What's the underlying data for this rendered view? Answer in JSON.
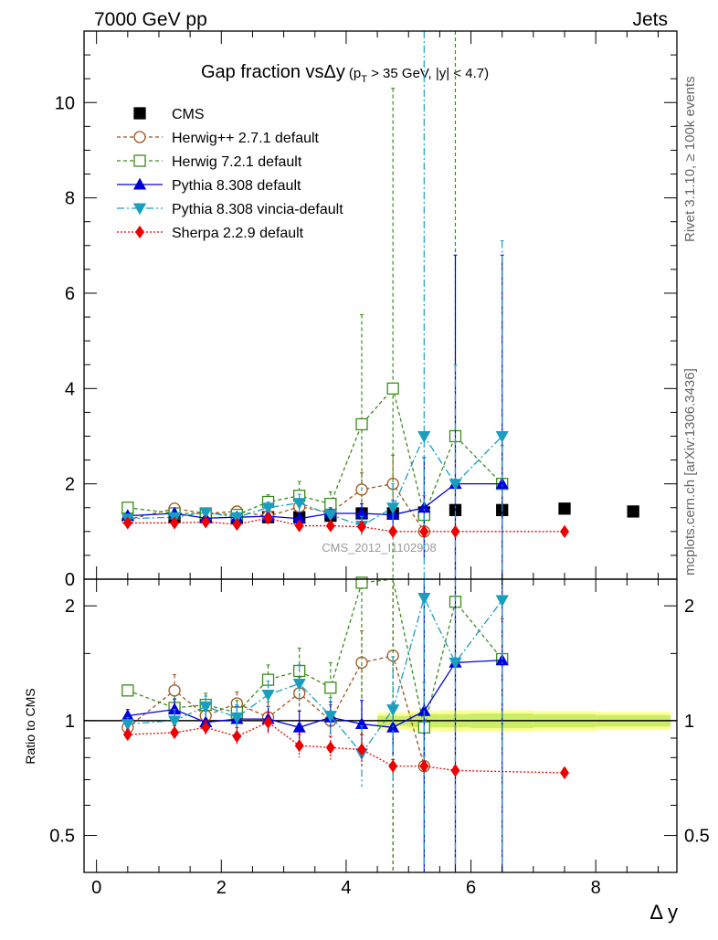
{
  "header": {
    "left": "7000 GeV pp",
    "right": "Jets"
  },
  "side_labels": {
    "rivet": "Rivet 3.1.10, ≥ 100k events",
    "mcplots": "mcplots.cern.ch [arXiv:1306.3436]"
  },
  "title": {
    "main": "Gap fraction vsΔy",
    "cond_a": "(p",
    "cond_sub": "T",
    "cond_b": " > 35 GeV, |y| < 4.7)"
  },
  "watermark": "CMS_2012_I1102908",
  "colors": {
    "CMS": "#000000",
    "Herwig++ 2.7.1 default": "#a0521b",
    "Herwig 7.2.1 default": "#3a8c1a",
    "Pythia 8.308 default": "#0000dd",
    "Pythia 8.308 vincia-default": "#1a9ec0",
    "Sherpa 2.2.9 default": "#ee0000",
    "band_inner": "#ccee66",
    "band_outer": "#ffff99"
  },
  "chart_data": [
    {
      "type": "line",
      "panel": "main",
      "xlabel": "Δ y",
      "ylabel": "",
      "xlim": [
        -0.2,
        9.3
      ],
      "ylim": [
        0,
        11.5
      ],
      "yticks": [
        0,
        2,
        4,
        6,
        8,
        10
      ],
      "legend_position": "top-left",
      "series": [
        {
          "name": "CMS",
          "style": "data",
          "x": [
            1.25,
            1.75,
            2.25,
            2.75,
            3.25,
            3.75,
            4.25,
            4.75,
            5.25,
            5.75,
            6.5,
            7.5,
            8.6
          ],
          "y": [
            1.3,
            1.3,
            1.28,
            1.3,
            1.3,
            1.33,
            1.38,
            1.38,
            1.4,
            1.45,
            1.45,
            1.48,
            1.42
          ]
        },
        {
          "name": "Herwig++ 2.7.1 default",
          "style": "herwigpp",
          "x": [
            0.5,
            1.25,
            1.75,
            2.25,
            2.75,
            3.25,
            3.75,
            4.25,
            4.75,
            5.25
          ],
          "y": [
            1.25,
            1.48,
            1.38,
            1.42,
            1.32,
            1.52,
            1.4,
            1.88,
            2.0,
            1.0
          ],
          "err": [
            0.05,
            0.1,
            0.08,
            0.08,
            0.12,
            0.15,
            0.12,
            0.35,
            0.6,
            0.1
          ]
        },
        {
          "name": "Herwig 7.2.1 default",
          "style": "herwig7",
          "x": [
            0.5,
            1.25,
            1.75,
            2.25,
            2.75,
            3.25,
            3.75,
            4.25,
            4.75,
            5.25,
            5.75,
            6.5
          ],
          "y": [
            1.5,
            1.38,
            1.38,
            1.35,
            1.62,
            1.75,
            1.58,
            3.25,
            4.0,
            1.35,
            3.0,
            2.0
          ],
          "err": [
            0.05,
            0.08,
            0.08,
            0.08,
            0.15,
            0.3,
            0.25,
            2.3,
            6.3,
            0.4,
            9.5,
            0.8
          ]
        },
        {
          "name": "Pythia 8.308 default",
          "style": "pythia",
          "x": [
            0.5,
            1.25,
            1.75,
            2.25,
            2.75,
            3.25,
            3.75,
            4.25,
            4.75,
            5.25,
            5.75,
            6.5
          ],
          "y": [
            1.33,
            1.38,
            1.28,
            1.3,
            1.32,
            1.27,
            1.38,
            1.38,
            1.35,
            1.5,
            2.0,
            2.0
          ],
          "err": [
            0.05,
            0.08,
            0.08,
            0.1,
            0.1,
            0.12,
            0.12,
            0.2,
            0.3,
            1.05,
            4.8,
            4.8
          ]
        },
        {
          "name": "Pythia 8.308 vincia-default",
          "style": "vincia",
          "x": [
            0.5,
            1.25,
            1.75,
            2.25,
            2.75,
            3.25,
            3.75,
            4.25,
            4.75,
            5.25,
            5.75,
            6.5
          ],
          "y": [
            1.27,
            1.3,
            1.4,
            1.3,
            1.5,
            1.6,
            1.35,
            1.12,
            1.5,
            3.0,
            2.0,
            3.0
          ],
          "err": [
            0.05,
            0.08,
            0.08,
            0.1,
            0.12,
            0.18,
            0.15,
            0.2,
            0.5,
            9.0,
            2.5,
            4.1
          ]
        },
        {
          "name": "Sherpa 2.2.9 default",
          "style": "sherpa",
          "x": [
            0.5,
            1.25,
            1.75,
            2.25,
            2.75,
            3.25,
            3.75,
            4.25,
            4.75,
            5.25,
            5.75,
            7.5
          ],
          "y": [
            1.18,
            1.18,
            1.2,
            1.15,
            1.28,
            1.12,
            1.12,
            1.1,
            1.0,
            1.0,
            1.0,
            1.0
          ],
          "err": [
            0.04,
            0.05,
            0.05,
            0.06,
            0.08,
            0.08,
            0.08,
            0.1,
            0.04,
            0.03,
            0.03,
            0.03
          ]
        }
      ]
    },
    {
      "type": "line",
      "panel": "ratio",
      "xlabel": "Δ y",
      "ylabel": "Ratio to CMS",
      "xlim": [
        -0.2,
        9.3
      ],
      "ylim": [
        0.4,
        2.35
      ],
      "yscale": "log",
      "yticks": [
        0.5,
        1,
        2
      ],
      "xticks": [
        0,
        2,
        4,
        6,
        8
      ],
      "band": {
        "x": [
          4.5,
          5.0,
          5.5,
          6.0,
          7.0,
          8.0,
          9.2
        ],
        "inner": [
          0.03,
          0.04,
          0.04,
          0.045,
          0.04,
          0.035
        ],
        "outer": [
          0.05,
          0.06,
          0.065,
          0.065,
          0.06,
          0.055
        ]
      },
      "series": [
        {
          "name": "Herwig++ 2.7.1 default",
          "style": "herwigpp",
          "x": [
            0.5,
            1.25,
            1.75,
            2.25,
            2.75,
            3.25,
            3.75,
            4.25,
            4.75,
            5.25
          ],
          "y": [
            0.96,
            1.2,
            1.03,
            1.11,
            1.02,
            1.18,
            1.0,
            1.42,
            1.48,
            0.76
          ],
          "err": [
            0.04,
            0.12,
            0.08,
            0.08,
            0.1,
            0.12,
            0.1,
            0.3,
            1.5,
            0.05
          ]
        },
        {
          "name": "Herwig 7.2.1 default",
          "style": "herwig7",
          "x": [
            0.5,
            1.25,
            1.75,
            2.25,
            2.75,
            3.25,
            3.75,
            4.25,
            4.75,
            5.25,
            5.75,
            6.5
          ],
          "y": [
            1.2,
            1.08,
            1.1,
            1.05,
            1.28,
            1.35,
            1.22,
            2.3,
            2.9,
            0.96,
            2.05,
            1.45
          ],
          "err": [
            0.04,
            0.08,
            0.08,
            0.08,
            0.12,
            0.2,
            0.2,
            1.5,
            3.0,
            0.3,
            4.0,
            0.4
          ]
        },
        {
          "name": "Pythia 8.308 default",
          "style": "pythia",
          "x": [
            0.5,
            1.25,
            1.75,
            2.25,
            2.75,
            3.25,
            3.75,
            4.25,
            4.75,
            5.25,
            5.75,
            6.5
          ],
          "y": [
            1.03,
            1.07,
            0.99,
            1.01,
            1.01,
            0.96,
            1.02,
            0.98,
            0.96,
            1.06,
            1.42,
            1.44
          ],
          "err": [
            0.04,
            0.07,
            0.07,
            0.08,
            0.08,
            0.1,
            0.1,
            0.15,
            0.15,
            1.5,
            2.0,
            2.0
          ]
        },
        {
          "name": "Pythia 8.308 vincia-default",
          "style": "vincia",
          "x": [
            0.5,
            1.25,
            1.75,
            2.25,
            2.75,
            3.25,
            3.75,
            4.25,
            4.75,
            5.25,
            5.75,
            6.5
          ],
          "y": [
            0.98,
            1.0,
            1.09,
            1.02,
            1.17,
            1.25,
            1.03,
            0.82,
            1.07,
            2.1,
            1.42,
            2.07
          ],
          "err": [
            0.04,
            0.07,
            0.07,
            0.08,
            0.1,
            0.15,
            0.12,
            0.15,
            0.4,
            3.0,
            1.0,
            2.5
          ]
        },
        {
          "name": "Sherpa 2.2.9 default",
          "style": "sherpa",
          "x": [
            0.5,
            1.25,
            1.75,
            2.25,
            2.75,
            3.25,
            3.75,
            4.25,
            4.75,
            5.25,
            5.75,
            7.5
          ],
          "y": [
            0.92,
            0.93,
            0.96,
            0.91,
            0.99,
            0.86,
            0.85,
            0.84,
            0.76,
            0.76,
            0.74,
            0.73
          ],
          "err": [
            0.03,
            0.04,
            0.04,
            0.05,
            0.06,
            0.06,
            0.06,
            0.08,
            0.03,
            0.02,
            0.02,
            0.02
          ]
        }
      ]
    }
  ]
}
